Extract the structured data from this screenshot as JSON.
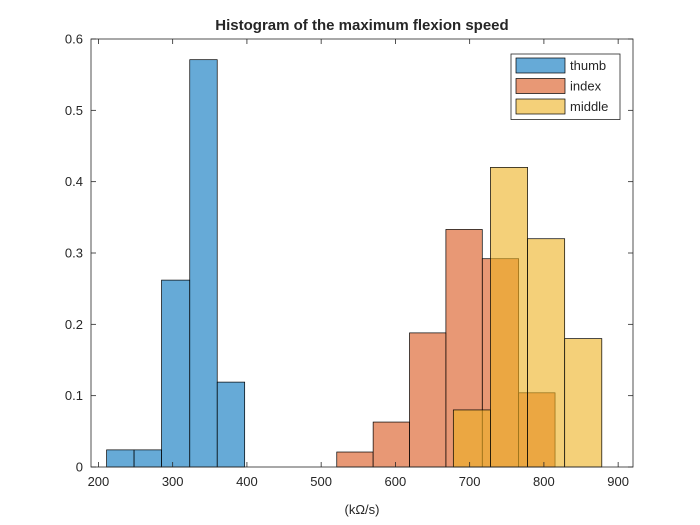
{
  "chart_data": {
    "type": "bar",
    "title": "Histogram of the maximum flexion speed",
    "xlabel": "(kΩ/s)",
    "ylabel": "",
    "xlim": [
      190,
      920
    ],
    "ylim": [
      0,
      0.6
    ],
    "xticks": [
      200,
      300,
      400,
      500,
      600,
      700,
      800,
      900
    ],
    "yticks": [
      0,
      0.1,
      0.2,
      0.3,
      0.4,
      0.5,
      0.6
    ],
    "grid": false,
    "legend_position": "top-right",
    "series": [
      {
        "name": "thumb",
        "color": "#0072BD",
        "bins": [
          {
            "x0": 211,
            "x1": 248,
            "value": 0.024
          },
          {
            "x0": 248,
            "x1": 285,
            "value": 0.024
          },
          {
            "x0": 285,
            "x1": 323,
            "value": 0.262
          },
          {
            "x0": 323,
            "x1": 360,
            "value": 0.571
          },
          {
            "x0": 360,
            "x1": 397,
            "value": 0.119
          }
        ]
      },
      {
        "name": "index",
        "color": "#D95319",
        "bins": [
          {
            "x0": 521,
            "x1": 570,
            "value": 0.021
          },
          {
            "x0": 570,
            "x1": 619,
            "value": 0.063
          },
          {
            "x0": 619,
            "x1": 668,
            "value": 0.188
          },
          {
            "x0": 668,
            "x1": 717,
            "value": 0.333
          },
          {
            "x0": 717,
            "x1": 766,
            "value": 0.292
          },
          {
            "x0": 766,
            "x1": 815,
            "value": 0.104
          }
        ]
      },
      {
        "name": "middle",
        "color": "#EDB120",
        "bins": [
          {
            "x0": 678,
            "x1": 728,
            "value": 0.08
          },
          {
            "x0": 728,
            "x1": 778,
            "value": 0.42
          },
          {
            "x0": 778,
            "x1": 828,
            "value": 0.32
          },
          {
            "x0": 828,
            "x1": 878,
            "value": 0.18
          }
        ]
      }
    ]
  }
}
